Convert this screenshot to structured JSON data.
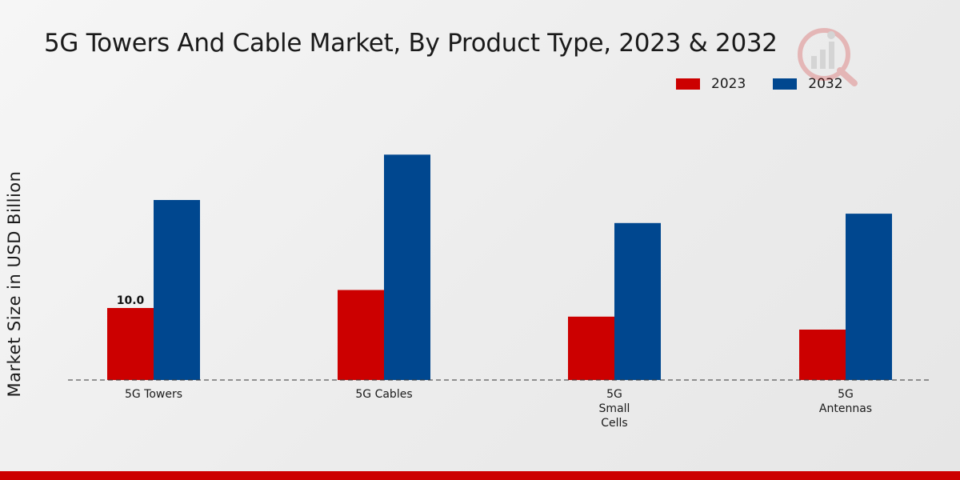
{
  "chart_data": {
    "type": "bar",
    "title": "5G Towers And Cable Market, By Product Type, 2023 & 2032",
    "xlabel": "",
    "ylabel": "Market Size in USD Billion",
    "categories": [
      [
        "5G Towers"
      ],
      [
        "5G Cables"
      ],
      [
        "5G",
        "Small",
        "Cells"
      ],
      [
        "5G",
        "Antennas"
      ]
    ],
    "series": [
      {
        "name": "2023",
        "color": "#cc0000",
        "values": [
          10.0,
          12.5,
          8.8,
          7.0
        ]
      },
      {
        "name": "2032",
        "color": "#00478f",
        "values": [
          25.0,
          31.3,
          21.8,
          23.1
        ]
      }
    ],
    "data_labels": [
      {
        "series": 0,
        "index": 0,
        "text": "10.0"
      }
    ],
    "ylim": [
      0,
      45
    ],
    "grid": false,
    "legend_position": "top-right"
  },
  "branding": {
    "accent_color": "#cc0000",
    "logo_icon": "watermark-logo-icon"
  }
}
